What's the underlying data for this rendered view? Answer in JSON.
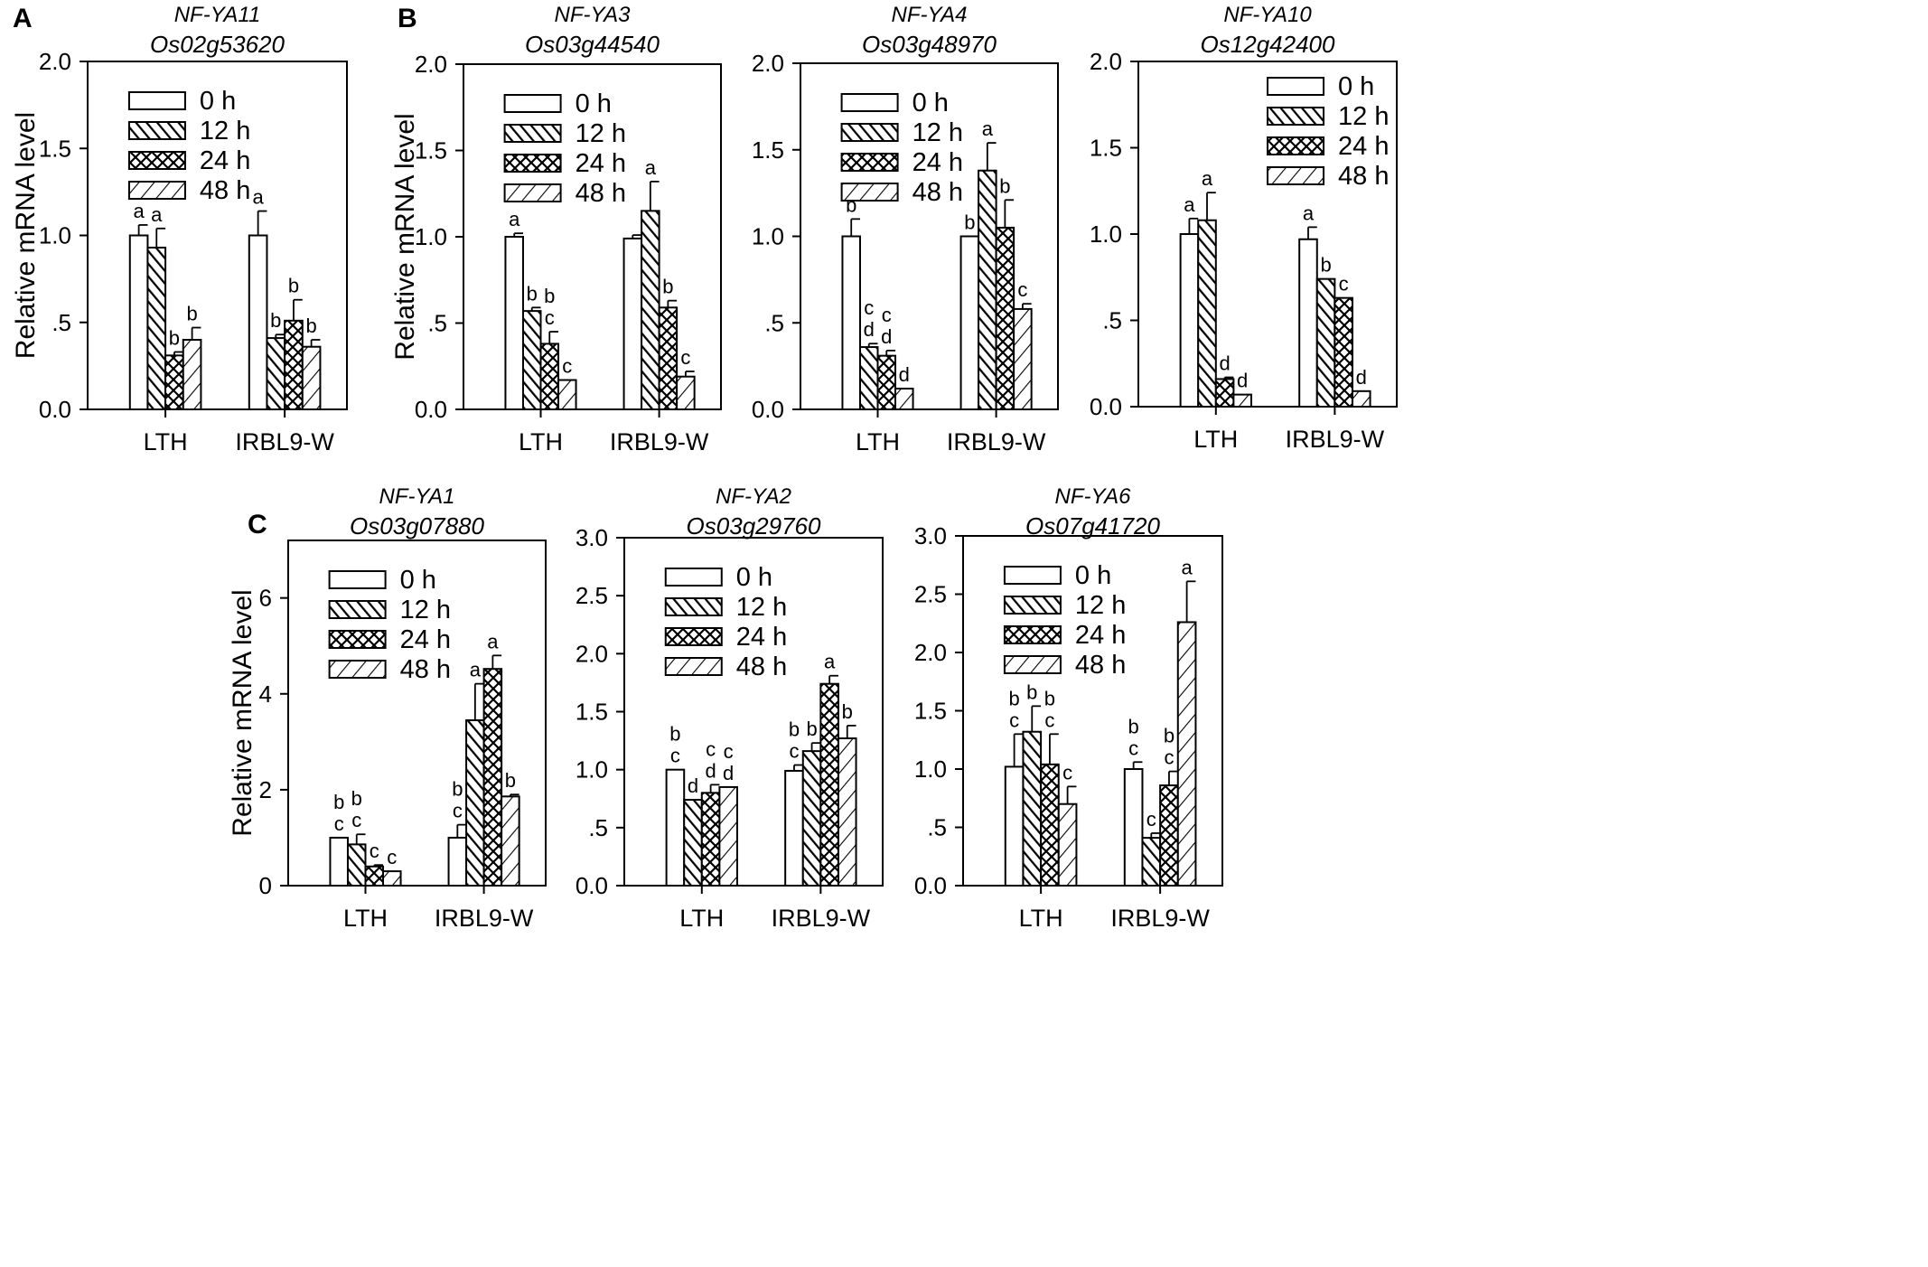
{
  "figure": {
    "panel_letters": [
      "A",
      "B",
      "C"
    ],
    "legend": [
      "0 h",
      "12 h",
      "24 h",
      "48 h"
    ],
    "categories": [
      "LTH",
      "IRBL9-W"
    ],
    "ylabel": "Relative mRNA level"
  },
  "chart_data": [
    {
      "type": "bar",
      "panel_letter": "A",
      "title": "NF-YA11",
      "subtitle": "Os02g53620",
      "ylabel": "Relative mRNA level",
      "ylim": [
        0,
        2.0
      ],
      "ytick_values": [
        0,
        0.5,
        1.0,
        1.5,
        2.0
      ],
      "ytick_labels": [
        "0.0",
        ".5",
        "1.0",
        "1.5",
        "2.0"
      ],
      "categories": [
        "LTH",
        "IRBL9-W"
      ],
      "show_legend": true,
      "series": [
        {
          "name": "0 h",
          "values": [
            1.0,
            1.0
          ],
          "errors": [
            0.06,
            0.14
          ],
          "letters": [
            [
              "a"
            ],
            [
              "a"
            ]
          ]
        },
        {
          "name": "12 h",
          "values": [
            0.93,
            0.41
          ],
          "errors": [
            0.11,
            0.02
          ],
          "letters": [
            [
              "a"
            ],
            [
              "b"
            ]
          ]
        },
        {
          "name": "24 h",
          "values": [
            0.31,
            0.51
          ],
          "errors": [
            0.02,
            0.12
          ],
          "letters": [
            [
              "b"
            ],
            [
              "b"
            ]
          ]
        },
        {
          "name": "48 h",
          "values": [
            0.4,
            0.36
          ],
          "errors": [
            0.07,
            0.04
          ],
          "letters": [
            [
              "b"
            ],
            [
              "b"
            ]
          ]
        }
      ]
    },
    {
      "type": "bar",
      "panel_letter": "B",
      "title": "NF-YA3",
      "subtitle": "Os03g44540",
      "ylabel": "Relative mRNA level",
      "ylim": [
        0,
        2.0
      ],
      "ytick_values": [
        0,
        0.5,
        1.0,
        1.5,
        2.0
      ],
      "ytick_labels": [
        "0.0",
        ".5",
        "1.0",
        "1.5",
        "2.0"
      ],
      "categories": [
        "LTH",
        "IRBL9-W"
      ],
      "show_legend": true,
      "series": [
        {
          "name": "0 h",
          "values": [
            1.0,
            0.99
          ],
          "errors": [
            0.02,
            0.02
          ],
          "letters": [
            [
              "a"
            ],
            []
          ]
        },
        {
          "name": "12 h",
          "values": [
            0.57,
            1.15
          ],
          "errors": [
            0.02,
            0.17
          ],
          "letters": [
            [
              "b"
            ],
            [
              "a"
            ]
          ]
        },
        {
          "name": "24 h",
          "values": [
            0.38,
            0.59
          ],
          "errors": [
            0.07,
            0.04
          ],
          "letters": [
            [
              "b",
              "c"
            ],
            [
              "b"
            ]
          ]
        },
        {
          "name": "48 h",
          "values": [
            0.17,
            0.19
          ],
          "errors": [
            0.0,
            0.03
          ],
          "letters": [
            [
              "c"
            ],
            [
              "c"
            ]
          ]
        }
      ]
    },
    {
      "type": "bar",
      "panel_letter": "",
      "title": "NF-YA4",
      "subtitle": "Os03g48970",
      "ylabel": "",
      "ylim": [
        0,
        2.0
      ],
      "ytick_values": [
        0,
        0.5,
        1.0,
        1.5,
        2.0
      ],
      "ytick_labels": [
        "0.0",
        ".5",
        "1.0",
        "1.5",
        "2.0"
      ],
      "categories": [
        "LTH",
        "IRBL9-W"
      ],
      "show_legend": true,
      "series": [
        {
          "name": "0 h",
          "values": [
            1.0,
            1.0
          ],
          "errors": [
            0.1,
            0.0
          ],
          "letters": [
            [
              "b"
            ],
            [
              "b"
            ]
          ]
        },
        {
          "name": "12 h",
          "values": [
            0.36,
            1.38
          ],
          "errors": [
            0.02,
            0.16
          ],
          "letters": [
            [
              "c",
              "d"
            ],
            [
              "a"
            ]
          ]
        },
        {
          "name": "24 h",
          "values": [
            0.31,
            1.05
          ],
          "errors": [
            0.03,
            0.16
          ],
          "letters": [
            [
              "c",
              "d"
            ],
            [
              "b"
            ]
          ]
        },
        {
          "name": "48 h",
          "values": [
            0.12,
            0.58
          ],
          "errors": [
            0.0,
            0.03
          ],
          "letters": [
            [
              "d"
            ],
            [
              "c"
            ]
          ]
        }
      ]
    },
    {
      "type": "bar",
      "panel_letter": "",
      "title": "NF-YA10",
      "subtitle": "Os12g42400",
      "ylabel": "",
      "ylim": [
        0,
        2.0
      ],
      "ytick_values": [
        0,
        0.5,
        1.0,
        1.5,
        2.0
      ],
      "ytick_labels": [
        "0.0",
        ".5",
        "1.0",
        "1.5",
        "2.0"
      ],
      "categories": [
        "LTH",
        "IRBL9-W"
      ],
      "show_legend": true,
      "series": [
        {
          "name": "0 h",
          "values": [
            1.0,
            0.97
          ],
          "errors": [
            0.09,
            0.07
          ],
          "letters": [
            [
              "a"
            ],
            [
              "a"
            ]
          ]
        },
        {
          "name": "12 h",
          "values": [
            1.08,
            0.74
          ],
          "errors": [
            0.16,
            0.0
          ],
          "letters": [
            [
              "a"
            ],
            [
              "b"
            ]
          ]
        },
        {
          "name": "24 h",
          "values": [
            0.16,
            0.63
          ],
          "errors": [
            0.01,
            0.0
          ],
          "letters": [
            [
              "d"
            ],
            [
              "c"
            ]
          ]
        },
        {
          "name": "48 h",
          "values": [
            0.07,
            0.09
          ],
          "errors": [
            0.0,
            0.0
          ],
          "letters": [
            [
              "d"
            ],
            [
              "d"
            ]
          ]
        }
      ]
    },
    {
      "type": "bar",
      "panel_letter": "C",
      "title": "NF-YA1",
      "subtitle": "Os03g07880",
      "ylabel": "Relative mRNA level",
      "ylim": [
        0,
        7.2
      ],
      "ytick_values": [
        0,
        2,
        4,
        6
      ],
      "ytick_labels": [
        "0",
        "2",
        "4",
        "6"
      ],
      "categories": [
        "LTH",
        "IRBL9-W"
      ],
      "show_legend": true,
      "series": [
        {
          "name": "0 h",
          "values": [
            1.0,
            1.0
          ],
          "errors": [
            0.0,
            0.27
          ],
          "letters": [
            [
              "b",
              "c"
            ],
            [
              "b",
              "c"
            ]
          ]
        },
        {
          "name": "12 h",
          "values": [
            0.86,
            3.45
          ],
          "errors": [
            0.21,
            0.76
          ],
          "letters": [
            [
              "b",
              "c"
            ],
            [
              "a"
            ]
          ]
        },
        {
          "name": "24 h",
          "values": [
            0.4,
            4.52
          ],
          "errors": [
            0.03,
            0.28
          ],
          "letters": [
            [
              "c"
            ],
            [
              "a"
            ]
          ]
        },
        {
          "name": "48 h",
          "values": [
            0.3,
            1.86
          ],
          "errors": [
            0.0,
            0.04
          ],
          "letters": [
            [
              "c"
            ],
            [
              "b"
            ]
          ]
        }
      ]
    },
    {
      "type": "bar",
      "panel_letter": "",
      "title": "NF-YA2",
      "subtitle": "Os03g29760",
      "ylabel": "",
      "ylim": [
        0,
        3.0
      ],
      "ytick_values": [
        0,
        0.5,
        1.0,
        1.5,
        2.0,
        2.5,
        3.0
      ],
      "ytick_labels": [
        "0.0",
        ".5",
        "1.0",
        "1.5",
        "2.0",
        "2.5",
        "3.0"
      ],
      "categories": [
        "LTH",
        "IRBL9-W"
      ],
      "show_legend": true,
      "series": [
        {
          "name": "0 h",
          "values": [
            1.0,
            0.99
          ],
          "errors": [
            0.0,
            0.05
          ],
          "letters": [
            [
              "b",
              "c"
            ],
            [
              "b",
              "c"
            ]
          ]
        },
        {
          "name": "12 h",
          "values": [
            0.74,
            1.16
          ],
          "errors": [
            0.0,
            0.07
          ],
          "letters": [
            [
              "d"
            ],
            [
              "b"
            ]
          ]
        },
        {
          "name": "24 h",
          "values": [
            0.8,
            1.74
          ],
          "errors": [
            0.07,
            0.07
          ],
          "letters": [
            [
              "c",
              "d"
            ],
            [
              "a"
            ]
          ]
        },
        {
          "name": "48 h",
          "values": [
            0.85,
            1.27
          ],
          "errors": [
            0.0,
            0.11
          ],
          "letters": [
            [
              "c",
              "d"
            ],
            [
              "b"
            ]
          ]
        }
      ]
    },
    {
      "type": "bar",
      "panel_letter": "",
      "title": "NF-YA6",
      "subtitle": "Os07g41720",
      "ylabel": "",
      "ylim": [
        0,
        3.0
      ],
      "ytick_values": [
        0,
        0.5,
        1.0,
        1.5,
        2.0,
        2.5,
        3.0
      ],
      "ytick_labels": [
        "0.0",
        ".5",
        "1.0",
        "1.5",
        "2.0",
        "2.5",
        "3.0"
      ],
      "categories": [
        "LTH",
        "IRBL9-W"
      ],
      "show_legend": true,
      "series": [
        {
          "name": "0 h",
          "values": [
            1.02,
            1.0
          ],
          "errors": [
            0.28,
            0.06
          ],
          "letters": [
            [
              "b",
              "c"
            ],
            [
              "b",
              "c"
            ]
          ]
        },
        {
          "name": "12 h",
          "values": [
            1.32,
            0.41
          ],
          "errors": [
            0.22,
            0.04
          ],
          "letters": [
            [
              "b"
            ],
            [
              "c"
            ]
          ]
        },
        {
          "name": "24 h",
          "values": [
            1.04,
            0.86
          ],
          "errors": [
            0.26,
            0.12
          ],
          "letters": [
            [
              "b",
              "c"
            ],
            [
              "b",
              "c"
            ]
          ]
        },
        {
          "name": "48 h",
          "values": [
            0.7,
            2.26
          ],
          "errors": [
            0.15,
            0.35
          ],
          "letters": [
            [
              "c"
            ],
            [
              "a"
            ]
          ]
        }
      ]
    }
  ]
}
